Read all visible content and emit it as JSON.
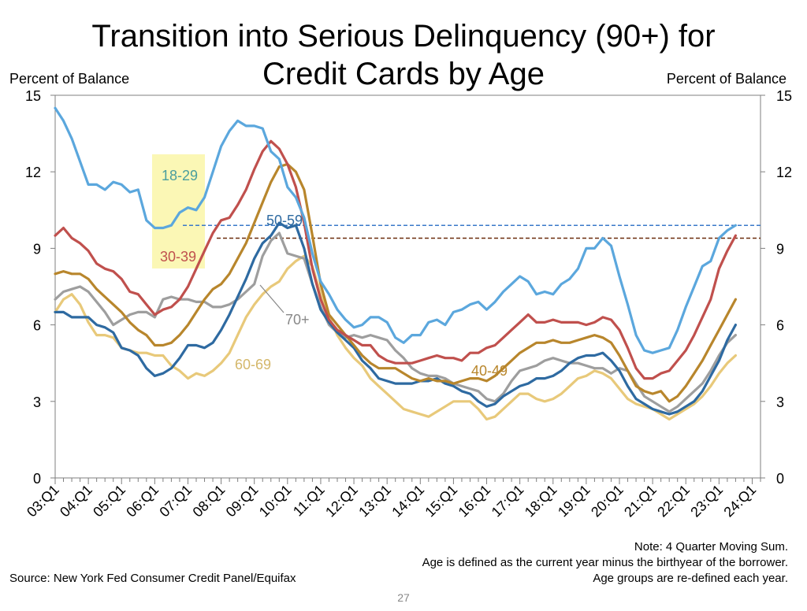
{
  "chart_data": {
    "type": "line",
    "title_line1": "Transition into Serious Delinquency (90+) for",
    "title_line2": "Credit Cards by Age",
    "ylabel_left": "Percent of Balance",
    "ylabel_right": "Percent of Balance",
    "ylim": [
      0,
      15
    ],
    "y_ticks": [
      "0",
      "3",
      "6",
      "9",
      "12",
      "15"
    ],
    "x_ticks": [
      "03:Q1",
      "04:Q1",
      "05:Q1",
      "06:Q1",
      "07:Q1",
      "08:Q1",
      "09:Q1",
      "10:Q1",
      "11:Q1",
      "12:Q1",
      "13:Q1",
      "14:Q1",
      "15:Q1",
      "16:Q1",
      "17:Q1",
      "18:Q1",
      "19:Q1",
      "20:Q1",
      "21:Q1",
      "22:Q1",
      "23:Q1",
      "24:Q1"
    ],
    "x_start": 2003.0,
    "x_step": 0.25,
    "series": [
      {
        "name": "18-29",
        "color": "#5ba7dd",
        "label_color": "#4a9e9e",
        "values": [
          14.5,
          14.0,
          13.3,
          12.4,
          11.5,
          11.5,
          11.3,
          11.6,
          11.5,
          11.2,
          11.3,
          10.1,
          9.8,
          9.8,
          9.9,
          10.4,
          10.6,
          10.5,
          11.0,
          12.0,
          13.0,
          13.6,
          14.0,
          13.8,
          13.8,
          13.7,
          12.8,
          12.5,
          11.4,
          11.0,
          10.2,
          8.8,
          7.7,
          7.2,
          6.6,
          6.2,
          5.9,
          6.0,
          6.3,
          6.3,
          6.1,
          5.5,
          5.3,
          5.6,
          5.6,
          6.1,
          6.2,
          6.0,
          6.5,
          6.6,
          6.8,
          6.9,
          6.6,
          6.9,
          7.3,
          7.6,
          7.9,
          7.7,
          7.2,
          7.3,
          7.2,
          7.6,
          7.8,
          8.2,
          9.0,
          9.0,
          9.4,
          9.1,
          7.9,
          6.8,
          5.6,
          5.0,
          4.9,
          5.0,
          5.1,
          5.8,
          6.7,
          7.5,
          8.3,
          8.5,
          9.4,
          9.7,
          9.9
        ]
      },
      {
        "name": "30-39",
        "color": "#c0504d",
        "label_color": "#c0504d",
        "values": [
          9.5,
          9.8,
          9.4,
          9.2,
          8.9,
          8.4,
          8.2,
          8.1,
          7.8,
          7.3,
          7.2,
          6.8,
          6.4,
          6.6,
          6.7,
          7.0,
          7.5,
          8.2,
          8.9,
          9.6,
          10.1,
          10.2,
          10.7,
          11.3,
          12.1,
          12.8,
          13.2,
          12.9,
          12.3,
          11.4,
          10.0,
          8.2,
          7.0,
          6.2,
          5.8,
          5.6,
          5.4,
          5.2,
          5.2,
          4.8,
          4.6,
          4.5,
          4.5,
          4.5,
          4.6,
          4.7,
          4.8,
          4.7,
          4.7,
          4.6,
          4.9,
          4.9,
          5.1,
          5.2,
          5.5,
          5.8,
          6.1,
          6.4,
          6.1,
          6.1,
          6.2,
          6.1,
          6.1,
          6.1,
          6.0,
          6.1,
          6.3,
          6.2,
          5.8,
          5.1,
          4.3,
          3.9,
          3.9,
          4.1,
          4.2,
          4.6,
          5.0,
          5.6,
          6.3,
          7.0,
          8.2,
          8.9,
          9.5
        ]
      },
      {
        "name": "40-49",
        "color": "#b8862c",
        "label_color": "#b8862c",
        "values": [
          8.0,
          8.1,
          8.0,
          8.0,
          7.8,
          7.4,
          7.1,
          6.8,
          6.5,
          6.1,
          5.8,
          5.6,
          5.2,
          5.2,
          5.3,
          5.6,
          6.0,
          6.5,
          7.0,
          7.4,
          7.6,
          8.0,
          8.6,
          9.2,
          10.0,
          10.8,
          11.6,
          12.2,
          12.3,
          12.0,
          11.3,
          9.5,
          7.6,
          6.4,
          6.0,
          5.6,
          5.2,
          4.8,
          4.5,
          4.3,
          4.3,
          4.3,
          4.1,
          3.9,
          3.8,
          3.9,
          3.8,
          3.8,
          3.7,
          3.8,
          3.9,
          3.9,
          3.8,
          4.0,
          4.3,
          4.6,
          4.9,
          5.1,
          5.3,
          5.3,
          5.4,
          5.3,
          5.3,
          5.4,
          5.5,
          5.6,
          5.5,
          5.3,
          4.8,
          4.2,
          3.6,
          3.4,
          3.3,
          3.4,
          3.0,
          3.2,
          3.6,
          4.1,
          4.6,
          5.2,
          5.8,
          6.4,
          7.0
        ]
      },
      {
        "name": "50-59",
        "color": "#2e6aa1",
        "label_color": "#2e6aa1",
        "values": [
          6.5,
          6.5,
          6.3,
          6.3,
          6.3,
          6.0,
          5.9,
          5.7,
          5.1,
          5.0,
          4.8,
          4.3,
          4.0,
          4.1,
          4.3,
          4.7,
          5.2,
          5.2,
          5.1,
          5.3,
          5.8,
          6.4,
          7.1,
          7.8,
          8.6,
          9.2,
          9.5,
          10.0,
          9.8,
          9.9,
          9.0,
          7.6,
          6.6,
          6.1,
          5.7,
          5.4,
          5.1,
          4.6,
          4.3,
          3.9,
          3.8,
          3.7,
          3.7,
          3.7,
          3.8,
          3.8,
          3.9,
          3.7,
          3.6,
          3.4,
          3.3,
          3.0,
          2.8,
          2.9,
          3.2,
          3.4,
          3.6,
          3.7,
          3.9,
          3.9,
          4.0,
          4.2,
          4.5,
          4.7,
          4.8,
          4.8,
          4.9,
          4.6,
          4.2,
          3.6,
          3.1,
          2.9,
          2.7,
          2.6,
          2.5,
          2.6,
          2.8,
          3.0,
          3.4,
          4.0,
          4.6,
          5.4,
          6.0
        ]
      },
      {
        "name": "60-69",
        "color": "#e8c97a",
        "label_color": "#d4b76a",
        "values": [
          6.5,
          7.0,
          7.2,
          6.8,
          6.1,
          5.6,
          5.6,
          5.5,
          5.1,
          5.0,
          4.9,
          4.9,
          4.8,
          4.8,
          4.4,
          4.2,
          3.9,
          4.1,
          4.0,
          4.2,
          4.5,
          4.9,
          5.6,
          6.3,
          6.8,
          7.2,
          7.5,
          7.7,
          8.2,
          8.5,
          8.7,
          8.3,
          7.2,
          6.3,
          5.6,
          5.1,
          4.7,
          4.4,
          3.9,
          3.6,
          3.3,
          3.0,
          2.7,
          2.6,
          2.5,
          2.4,
          2.6,
          2.8,
          3.0,
          3.0,
          3.0,
          2.7,
          2.3,
          2.4,
          2.7,
          3.0,
          3.3,
          3.3,
          3.1,
          3.0,
          3.1,
          3.3,
          3.6,
          3.9,
          4.0,
          4.2,
          4.1,
          3.9,
          3.5,
          3.1,
          2.9,
          2.8,
          2.7,
          2.5,
          2.3,
          2.5,
          2.7,
          2.9,
          3.2,
          3.6,
          4.1,
          4.5,
          4.8
        ]
      },
      {
        "name": "70+",
        "color": "#9e9e9e",
        "label_color": "#888888",
        "values": [
          7.0,
          7.3,
          7.4,
          7.5,
          7.3,
          6.9,
          6.5,
          6.0,
          6.2,
          6.4,
          6.5,
          6.5,
          6.3,
          7.0,
          7.1,
          7.0,
          7.0,
          6.9,
          6.9,
          6.7,
          6.7,
          6.8,
          7.0,
          7.3,
          7.6,
          8.7,
          9.3,
          9.6,
          8.8,
          8.7,
          8.6,
          7.6,
          6.7,
          6.0,
          5.7,
          5.5,
          5.6,
          5.5,
          5.6,
          5.5,
          5.4,
          5.0,
          4.7,
          4.3,
          4.1,
          4.0,
          4.0,
          3.9,
          3.7,
          3.6,
          3.5,
          3.4,
          3.1,
          3.0,
          3.3,
          3.8,
          4.2,
          4.3,
          4.4,
          4.6,
          4.7,
          4.6,
          4.5,
          4.5,
          4.4,
          4.3,
          4.3,
          4.1,
          4.3,
          4.2,
          3.7,
          3.2,
          3.0,
          2.8,
          2.6,
          2.8,
          3.1,
          3.4,
          3.7,
          4.2,
          4.8,
          5.3,
          5.6
        ]
      }
    ],
    "reference_lines": [
      {
        "name": "50-59-ref",
        "value": 9.9,
        "color": "#3a78c9",
        "dash": true
      },
      {
        "name": "30-39-ref",
        "value": 9.4,
        "color": "#6b2c0c",
        "dash": true
      }
    ],
    "annotations": [
      "18-29",
      "30-39",
      "50-59",
      "70+",
      "60-69",
      "40-49"
    ]
  },
  "notes": {
    "line1": "Note: 4 Quarter Moving Sum.",
    "line2": "Age is defined as the current year minus the birthyear of the borrower.",
    "line3": "Age groups are re-defined each year."
  },
  "source": "Source: New York Fed Consumer Credit Panel/Equifax",
  "page_number": "27"
}
